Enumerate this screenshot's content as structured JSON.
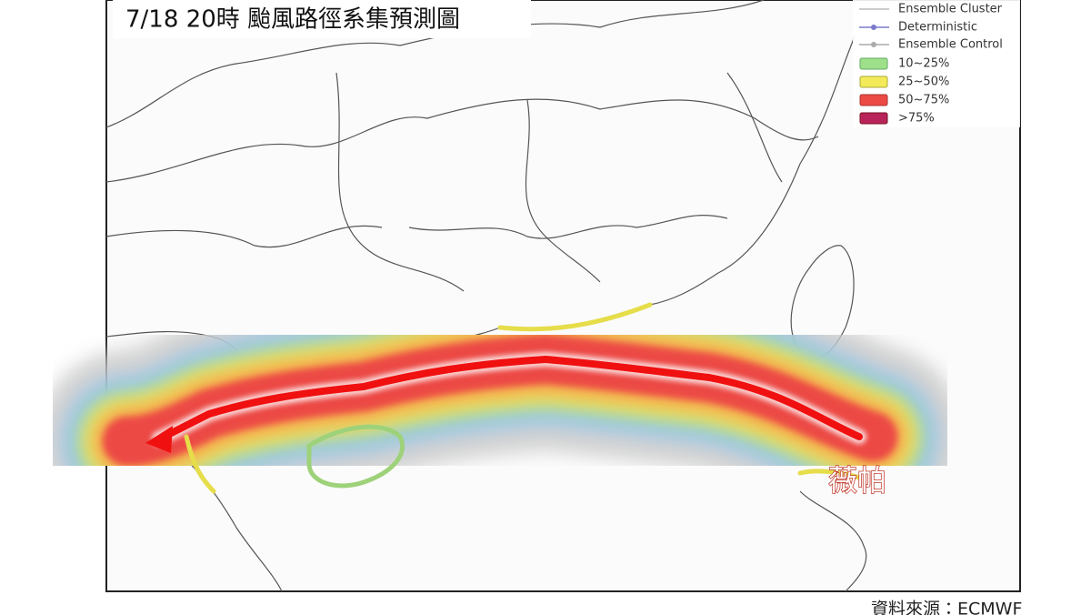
{
  "header": {
    "title": "7/18 20時 颱風路徑系集預測圖"
  },
  "legend": {
    "items": [
      "Ensemble Cluster",
      "Deterministic",
      "Ensemble Control",
      "10~25%",
      "25~50%",
      "50~75%",
      ">75%"
    ]
  },
  "storm_label": "薇帕",
  "source": "資料來源：ECMWF"
}
